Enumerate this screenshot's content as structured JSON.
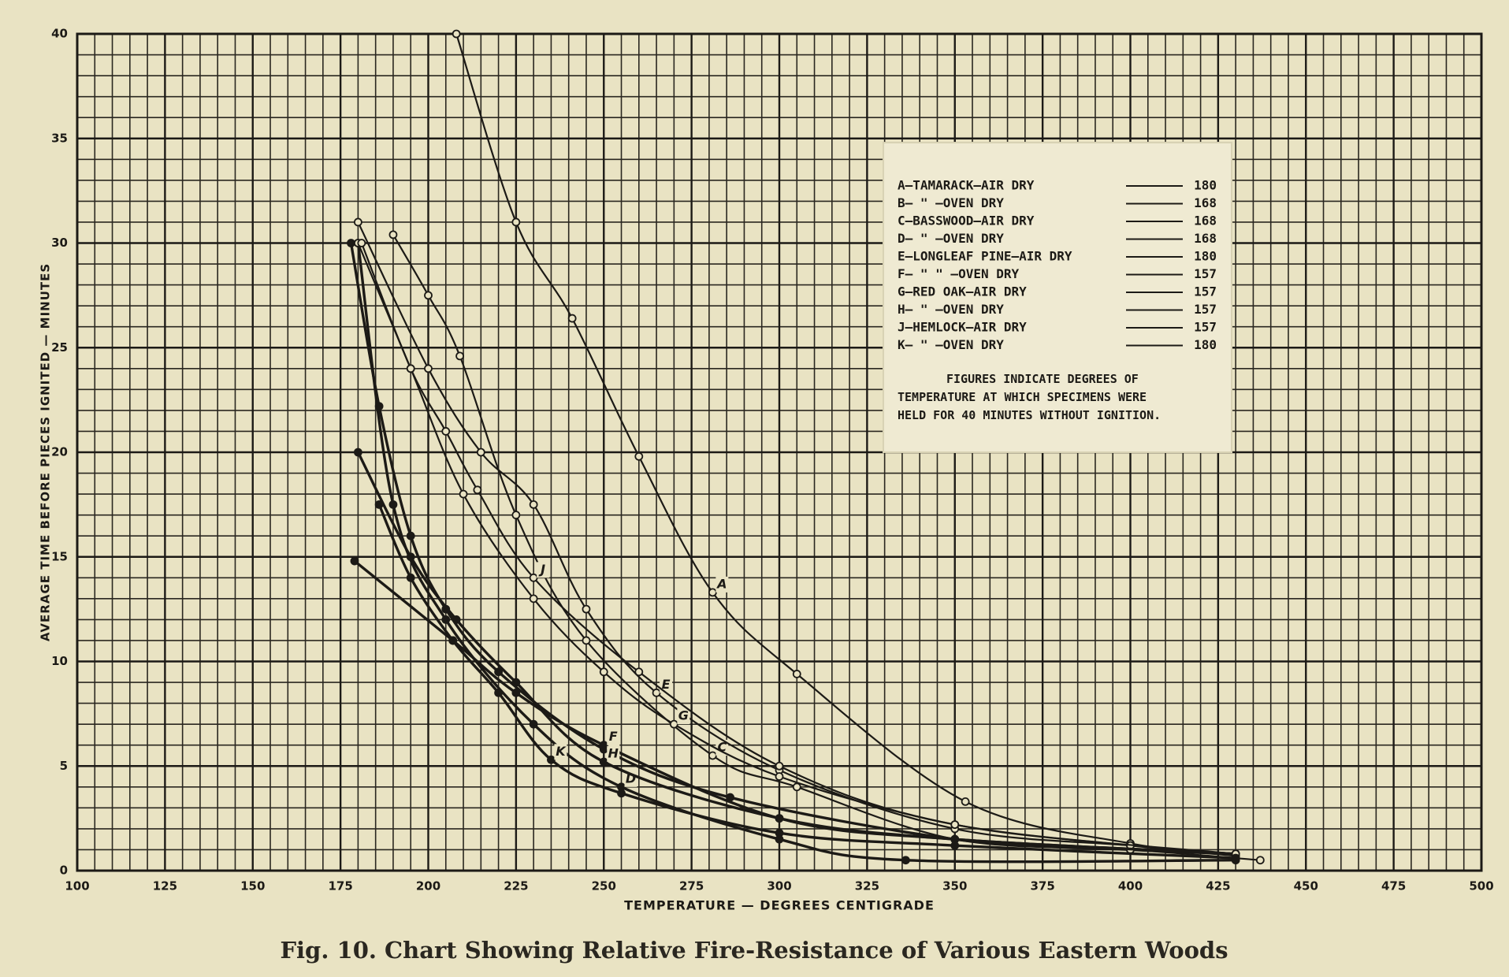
{
  "chart_data": {
    "type": "line",
    "caption": "Fig. 10.  Chart Showing Relative Fire-Resistance of Various Eastern Woods",
    "xlabel": "TEMPERATURE — DEGREES CENTIGRADE",
    "ylabel": "AVERAGE TIME BEFORE PIECES IGNITED — MINUTES",
    "xlim": [
      100,
      500
    ],
    "ylim": [
      0,
      40
    ],
    "xticks": [
      100,
      125,
      150,
      175,
      200,
      225,
      250,
      275,
      300,
      325,
      350,
      375,
      400,
      425,
      450,
      475,
      500
    ],
    "yticks": [
      0,
      5,
      10,
      15,
      20,
      25,
      30,
      35,
      40
    ],
    "grid": true,
    "legend_position": "upper right",
    "legend_note": "FIGURES INDICATE DEGREES OF TEMPERATURE AT WHICH SPECIMENS WERE HELD FOR 40 MINUTES WITHOUT IGNITION.",
    "series": [
      {
        "name": "A—TAMARACK—AIR DRY",
        "label": "A",
        "degrees": 180,
        "color": "#1c1a16",
        "x": [
          208,
          225,
          241,
          260,
          281,
          305,
          353,
          400,
          430
        ],
        "values": [
          40,
          31,
          26.4,
          19.8,
          13.3,
          9.4,
          3.3,
          1.3,
          0.8
        ]
      },
      {
        "name": "B— \" —OVEN DRY",
        "label": "B",
        "degrees": 168,
        "color": "#1c1a16",
        "x": [
          178,
          186,
          195,
          205,
          220,
          250,
          286,
          350,
          400,
          430
        ],
        "values": [
          30,
          22.2,
          16,
          12.5,
          9.5,
          5.8,
          3.5,
          1.5,
          1,
          0.8
        ]
      },
      {
        "name": "C—BASSWOOD—AIR DRY",
        "label": "C",
        "degrees": 168,
        "color": "#1c1a16",
        "x": [
          190,
          200,
          209,
          225,
          245,
          281,
          305,
          350,
          400,
          437
        ],
        "values": [
          30.4,
          27.5,
          24.6,
          17,
          11,
          5.5,
          4,
          1.5,
          1,
          0.5
        ]
      },
      {
        "name": "D— \" —OVEN DRY",
        "label": "D",
        "degrees": 168,
        "color": "#1c1a16",
        "x": [
          180,
          190,
          205,
          230,
          255,
          300,
          336,
          430
        ],
        "values": [
          30,
          17.5,
          12,
          7,
          4,
          1.5,
          0.5,
          0.5
        ]
      },
      {
        "name": "E—LONGLEAF PINE—AIR DRY",
        "label": "E",
        "degrees": 180,
        "color": "#1c1a16",
        "x": [
          180,
          200,
          215,
          230,
          245,
          265,
          300,
          350,
          400,
          430
        ],
        "values": [
          31,
          24,
          20,
          17.5,
          12.5,
          8.5,
          4.8,
          2,
          1.2,
          0.8
        ]
      },
      {
        "name": "F— \" \" —OVEN DRY",
        "label": "F",
        "degrees": 157,
        "color": "#1c1a16",
        "x": [
          179,
          207,
          225,
          250,
          300,
          350,
          430
        ],
        "values": [
          14.8,
          11,
          8.5,
          6,
          2.5,
          1.5,
          0.8
        ]
      },
      {
        "name": "G—RED OAK—AIR DRY",
        "label": "G",
        "degrees": 157,
        "color": "#1c1a16",
        "x": [
          180,
          195,
          210,
          230,
          250,
          270,
          300,
          350,
          400,
          430
        ],
        "values": [
          30,
          24,
          18,
          13,
          9.5,
          7,
          4.5,
          2.2,
          1.2,
          0.7
        ]
      },
      {
        "name": "H— \" —OVEN DRY",
        "label": "H",
        "degrees": 157,
        "color": "#1c1a16",
        "x": [
          180,
          195,
          208,
          225,
          250,
          300,
          350,
          430
        ],
        "values": [
          20,
          15,
          12,
          9,
          5.2,
          2.5,
          1.5,
          0.8
        ]
      },
      {
        "name": "J—HEMLOCK—AIR DRY",
        "label": "J",
        "degrees": 157,
        "color": "#1c1a16",
        "x": [
          181,
          195,
          205,
          214,
          230,
          260,
          300,
          350,
          430
        ],
        "values": [
          30,
          24,
          21,
          18.2,
          14,
          9.5,
          5,
          2.2,
          0.8
        ]
      },
      {
        "name": "K— \" —OVEN DRY",
        "label": "K",
        "degrees": 180,
        "color": "#1c1a16",
        "x": [
          186,
          195,
          207,
          220,
          235,
          255,
          300,
          350,
          430
        ],
        "values": [
          17.5,
          14,
          11,
          8.5,
          5.3,
          3.7,
          1.8,
          1.2,
          0.6
        ]
      }
    ]
  }
}
